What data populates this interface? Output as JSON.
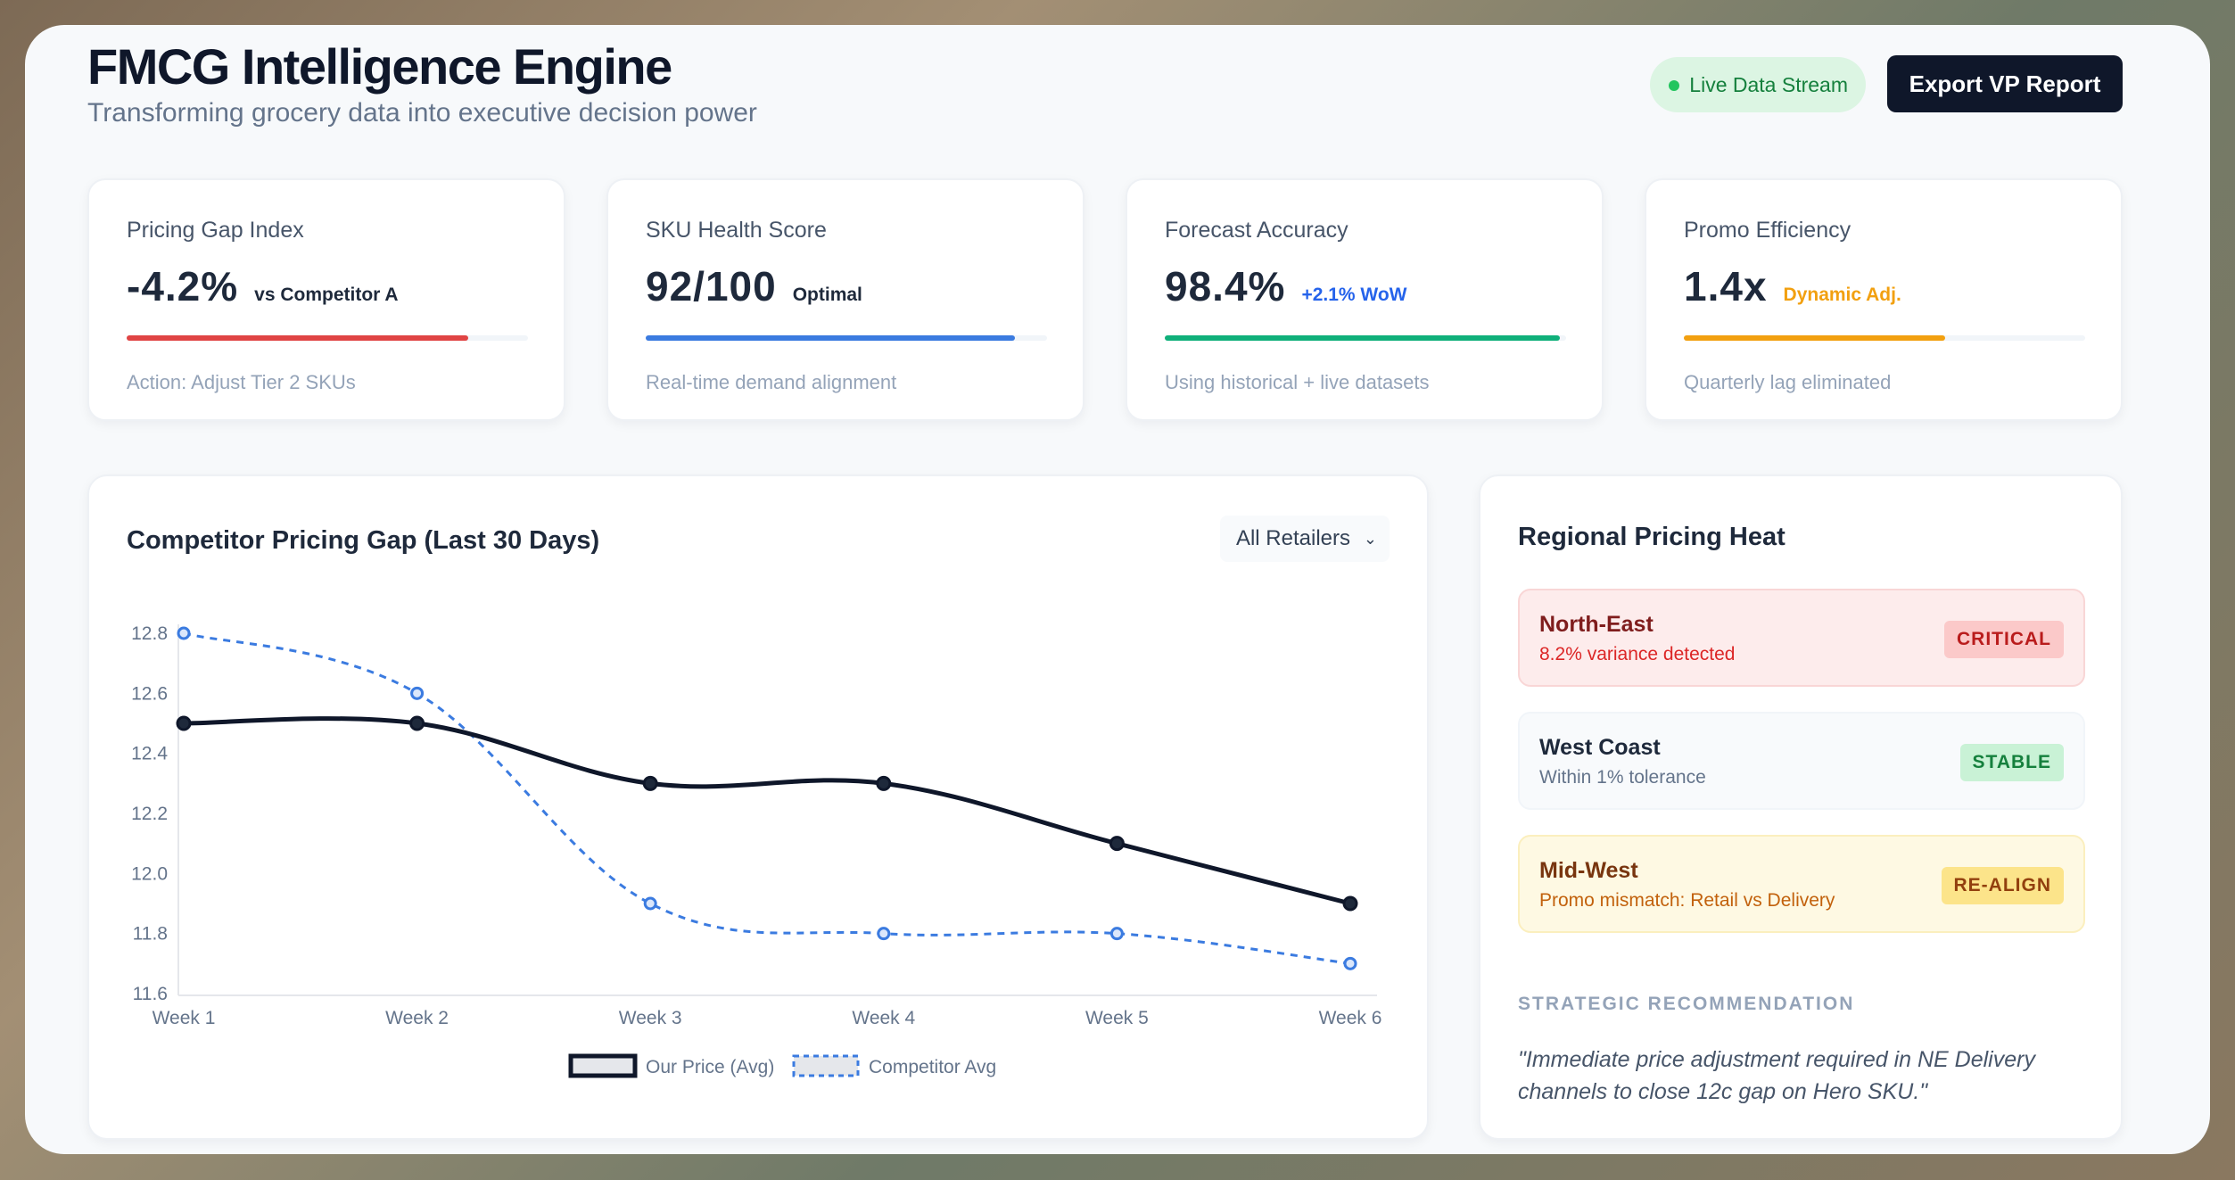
{
  "header": {
    "title": "FMCG Intelligence Engine",
    "subtitle": "Transforming grocery data into executive decision power",
    "live_label": "Live Data Stream",
    "export_label": "Export VP Report"
  },
  "kpis": [
    {
      "label": "Pricing Gap Index",
      "value": "-4.2%",
      "note": "vs Competitor A",
      "note_color": "#1e293b",
      "progress": 0.85,
      "bar_color": "#e04444",
      "footer": "Action: Adjust Tier 2 SKUs"
    },
    {
      "label": "SKU Health Score",
      "value": "92/100",
      "note": "Optimal",
      "note_color": "#1e293b",
      "progress": 0.92,
      "bar_color": "#3b7be0",
      "footer": "Real-time demand alignment"
    },
    {
      "label": "Forecast Accuracy",
      "value": "98.4%",
      "note": "+2.1% WoW",
      "note_color": "#2563eb",
      "progress": 0.984,
      "bar_color": "#10b07a",
      "footer": "Using historical + live datasets"
    },
    {
      "label": "Promo Efficiency",
      "value": "1.4x",
      "note": "Dynamic Adj.",
      "note_color": "#f2a010",
      "progress": 0.65,
      "bar_color": "#f2a010",
      "footer": "Quarterly lag eliminated"
    }
  ],
  "chart_panel": {
    "filter_label": "All Retailers",
    "chevron_icon": "chevron-down-icon"
  },
  "chart_data": {
    "type": "line",
    "title": "Competitor Pricing Gap (Last 30 Days)",
    "categories": [
      "Week 1",
      "Week 2",
      "Week 3",
      "Week 4",
      "Week 5",
      "Week 6"
    ],
    "series": [
      {
        "name": "Our Price (Avg)",
        "values": [
          12.5,
          12.5,
          12.3,
          12.3,
          12.1,
          11.9
        ],
        "color": "#0f172a",
        "style": "solid"
      },
      {
        "name": "Competitor Avg",
        "values": [
          12.8,
          12.6,
          11.9,
          11.8,
          11.8,
          11.7
        ],
        "color": "#3b7be0",
        "style": "dashed"
      }
    ],
    "ylim": [
      11.6,
      12.8
    ],
    "yticks": [
      "12.8",
      "12.6",
      "12.4",
      "12.2",
      "12.0",
      "11.8",
      "11.6"
    ],
    "legend_position": "bottom",
    "grid": false
  },
  "heat": {
    "title": "Regional Pricing Heat",
    "regions": [
      {
        "name": "North-East",
        "detail": "8.2% variance detected",
        "badge": "CRITICAL",
        "bg": "#fdecec",
        "border": "#f9d6d6",
        "name_color": "#7f1d1d",
        "detail_color": "#dc2626",
        "badge_bg": "#fbc9c9",
        "badge_color": "#b91c1c"
      },
      {
        "name": "West Coast",
        "detail": "Within 1% tolerance",
        "badge": "STABLE",
        "bg": "#f8fafc",
        "border": "#f1f5f9",
        "name_color": "#1e293b",
        "detail_color": "#64748b",
        "badge_bg": "#c9f2d6",
        "badge_color": "#15803d"
      },
      {
        "name": "Mid-West",
        "detail": "Promo mismatch: Retail vs Delivery",
        "badge": "RE-ALIGN",
        "bg": "#fef9e3",
        "border": "#fbefbe",
        "name_color": "#78350f",
        "detail_color": "#c2610c",
        "badge_bg": "#fce48a",
        "badge_color": "#92400e"
      }
    ],
    "recommendation_heading": "STRATEGIC RECOMMENDATION",
    "recommendation": "\"Immediate price adjustment required in NE Delivery channels to close 12c gap on Hero SKU.\""
  }
}
